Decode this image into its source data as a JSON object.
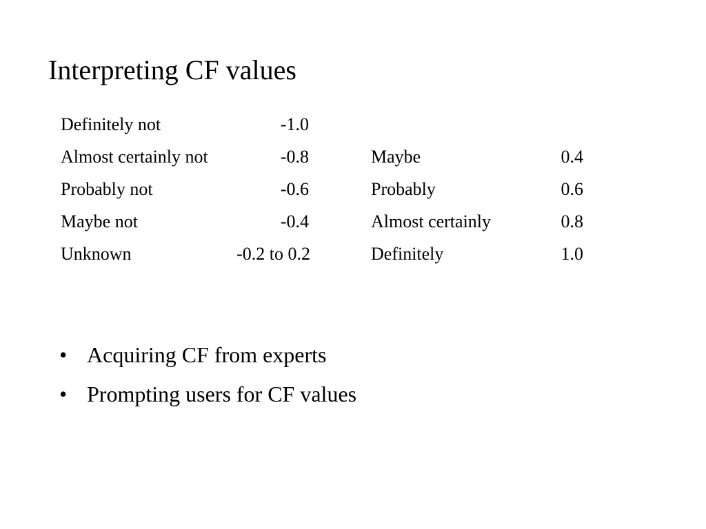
{
  "slide": {
    "title": "Interpreting CF values",
    "negative_terms": [
      {
        "term": "Definitely not",
        "value": "-1.0"
      },
      {
        "term": "Almost certainly not",
        "value": "-0.8"
      },
      {
        "term": "Probably not",
        "value": "-0.6"
      },
      {
        "term": "Maybe not",
        "value": "-0.4"
      }
    ],
    "unknown": {
      "term": "Unknown",
      "value": "-0.2 to 0.2"
    },
    "positive_terms": [
      {
        "term": "Maybe",
        "value": "0.4"
      },
      {
        "term": "Probably",
        "value": "0.6"
      },
      {
        "term": "Almost certainly",
        "value": "0.8"
      },
      {
        "term": "Definitely",
        "value": "1.0"
      }
    ],
    "bullets": [
      {
        "marker": "•",
        "text": "Acquiring CF from experts"
      },
      {
        "marker": "•",
        "text": "Prompting users for CF values"
      }
    ]
  }
}
